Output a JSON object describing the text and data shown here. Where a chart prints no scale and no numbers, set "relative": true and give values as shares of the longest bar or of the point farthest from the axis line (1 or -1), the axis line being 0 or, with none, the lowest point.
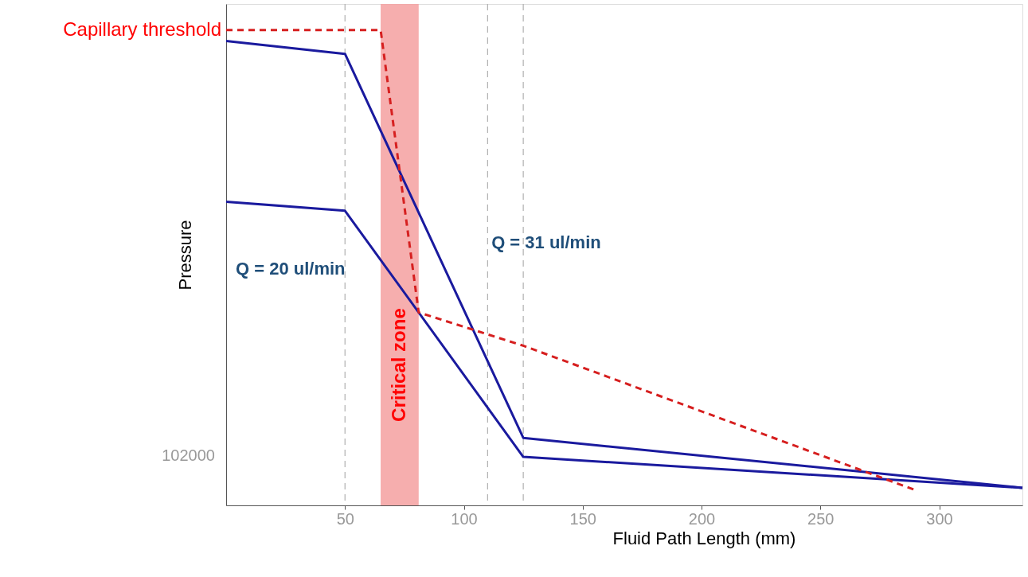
{
  "chart_data": {
    "type": "line",
    "relative": true,
    "xlabel": "Fluid Path Length (mm)",
    "ylabel": "Pressure",
    "xlim": [
      0,
      335
    ],
    "xticks": [
      50,
      100,
      150,
      200,
      250,
      300
    ],
    "grid": false,
    "marker": "none",
    "series": [
      {
        "name": "Q = 31 ul/min",
        "color": "#1a1a9e",
        "x": [
          0,
          50,
          125,
          335
        ],
        "values": [
          0.977,
          0.95,
          0.142,
          0.037
        ]
      },
      {
        "name": "Q = 20 ul/min",
        "color": "#1a1a9e",
        "x": [
          0,
          50,
          125,
          335
        ],
        "values": [
          0.639,
          0.62,
          0.102,
          0.037
        ]
      },
      {
        "name": "Capillary threshold",
        "color": "#d62020",
        "line_style": "dashed",
        "x": [
          0,
          65,
          81,
          125,
          290
        ],
        "values": [
          1,
          1,
          0.406,
          0.336,
          0.032
        ]
      }
    ],
    "ref_lines": [
      {
        "axis": "x",
        "value": 50,
        "color": "#b0b0b0",
        "line_style": "dashed"
      },
      {
        "axis": "x",
        "value": 110,
        "color": "#b0b0b0",
        "line_style": "dashed"
      },
      {
        "axis": "x",
        "value": 125,
        "color": "#b0b0b0",
        "line_style": "dashed"
      }
    ],
    "bands": [
      {
        "axis": "x",
        "from": 65,
        "to": 81,
        "label": "Critical zone",
        "color": "#f4a0a0"
      }
    ],
    "annotations": [
      "102000"
    ]
  }
}
